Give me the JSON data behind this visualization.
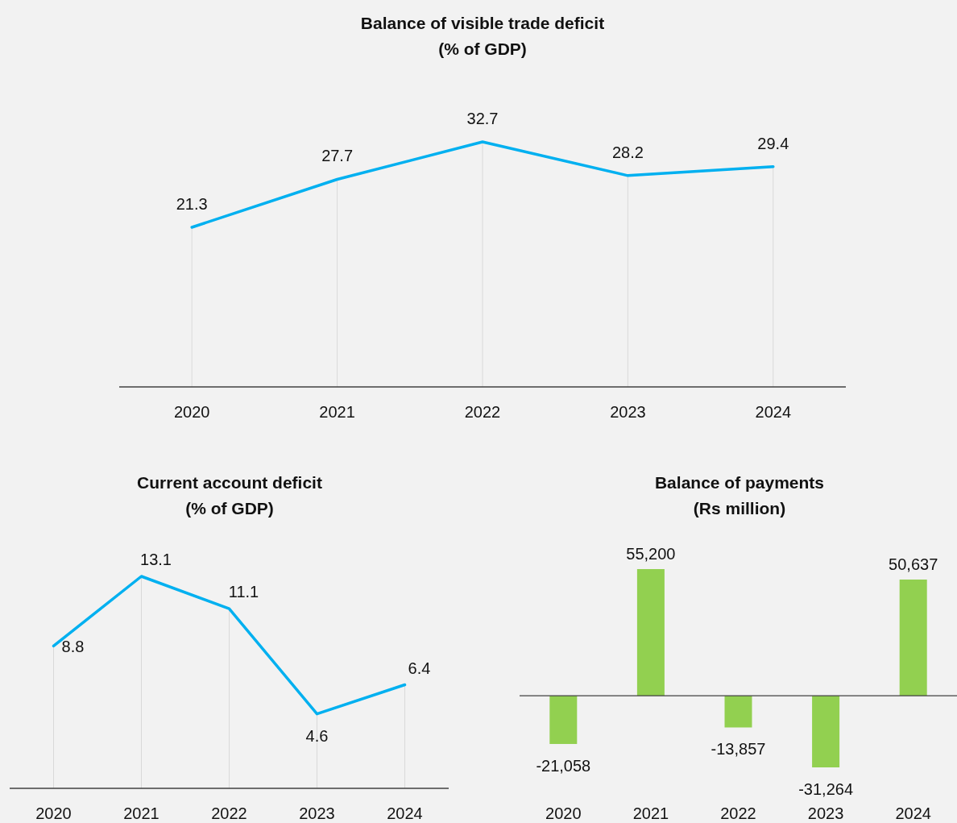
{
  "chart_data": [
    {
      "type": "line",
      "title": "Balance of visible trade deficit",
      "subtitle": "(% of GDP)",
      "categories": [
        "2020",
        "2021",
        "2022",
        "2023",
        "2024"
      ],
      "values": [
        21.3,
        27.7,
        32.7,
        28.2,
        29.4
      ],
      "color": "#00b0f0",
      "data_labels": true,
      "tick_labels": "x",
      "grid": "x"
    },
    {
      "type": "line",
      "title": "Current account deficit",
      "subtitle": "(% of GDP)",
      "categories": [
        "2020",
        "2021",
        "2022",
        "2023",
        "2024"
      ],
      "values": [
        8.8,
        13.1,
        11.1,
        4.6,
        6.4
      ],
      "color": "#00b0f0",
      "data_labels": true,
      "tick_labels": "x",
      "grid": "x"
    },
    {
      "type": "bar",
      "title": "Balance of payments",
      "subtitle": "(Rs million)",
      "categories": [
        "2020",
        "2021",
        "2022",
        "2023",
        "2024"
      ],
      "values": [
        -21058,
        55200,
        -13857,
        -31264,
        50637
      ],
      "value_labels": [
        "-21,058",
        "55,200",
        "-13,857",
        "-31,264",
        "50,637"
      ],
      "color": "#92d050",
      "tick_labels": "x"
    }
  ]
}
